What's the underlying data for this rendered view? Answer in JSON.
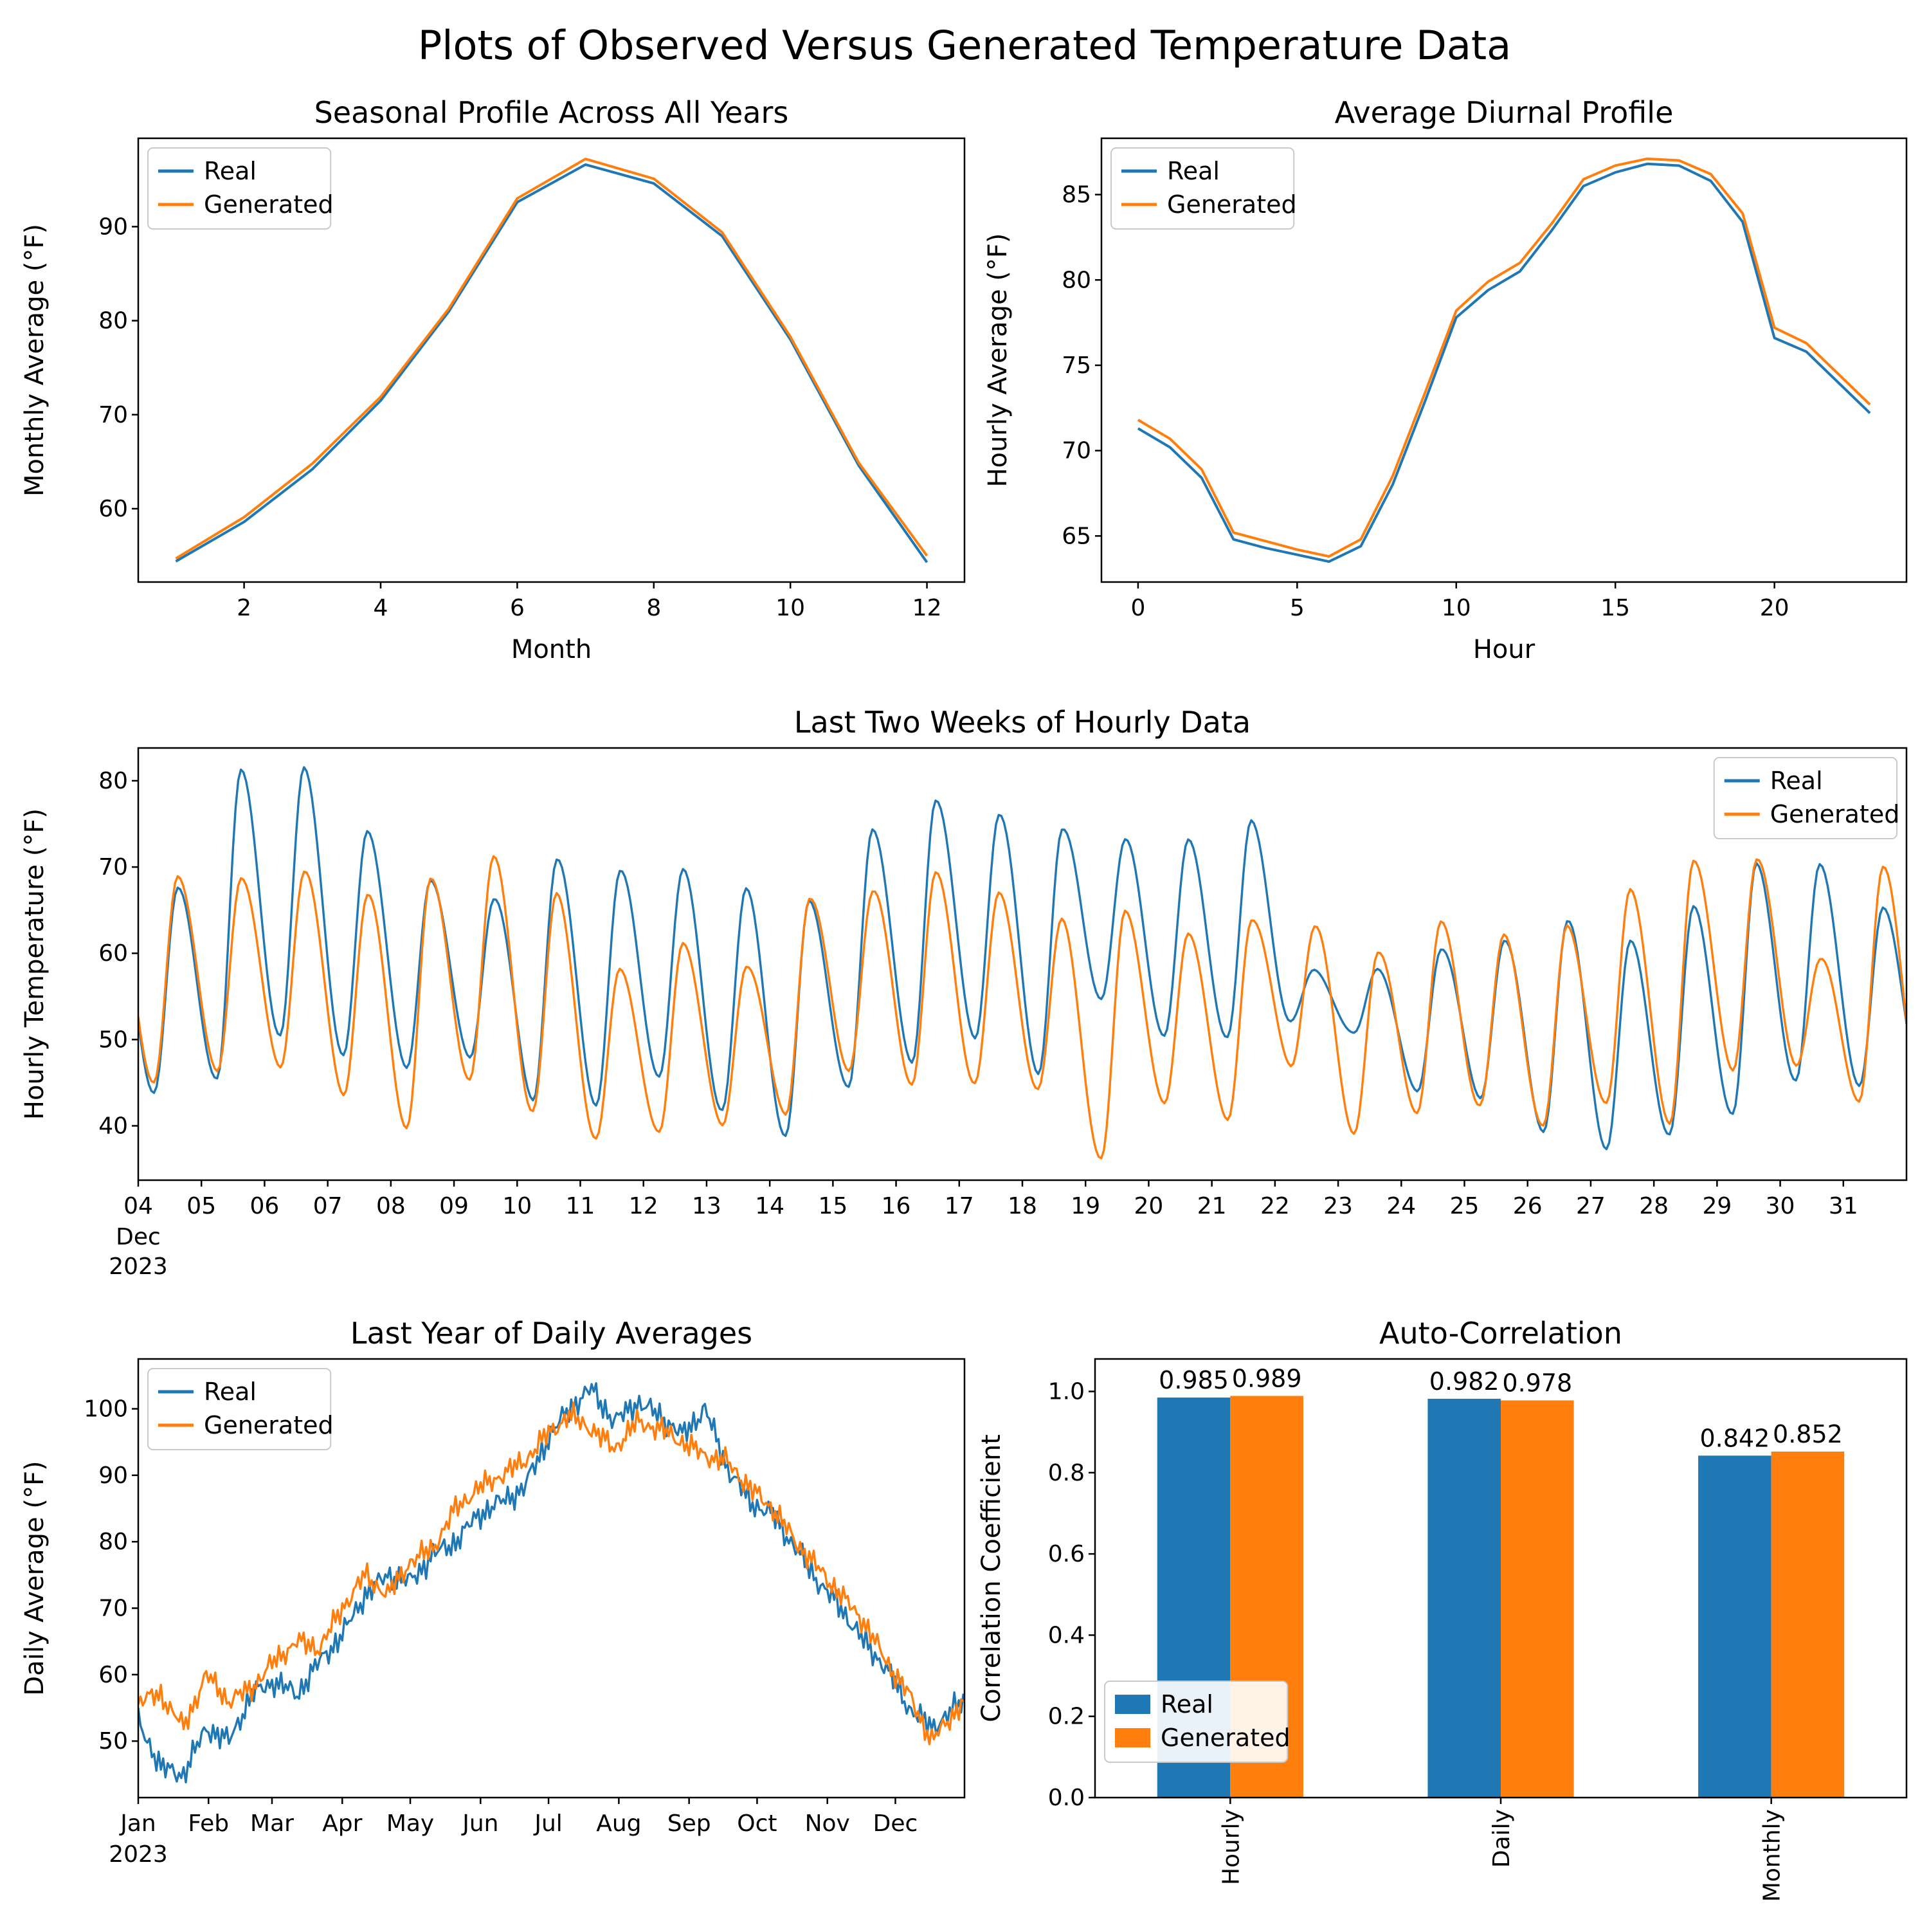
{
  "figure_title": "Plots of Observed Versus Generated Temperature Data",
  "colors": {
    "real": "#1f77b4",
    "generated": "#ff7f0e"
  },
  "legend_labels": {
    "real": "Real",
    "generated": "Generated"
  },
  "chart_data": [
    {
      "id": "seasonal",
      "type": "line",
      "title": "Seasonal Profile Across All Years",
      "xlabel": "Month",
      "ylabel": "Monthly Average (°F)",
      "xlim": [
        0.45,
        12.55
      ],
      "ylim": [
        52.2,
        99.4
      ],
      "xticks": [
        2,
        4,
        6,
        8,
        10,
        12
      ],
      "xtick_labels": [
        "2",
        "4",
        "6",
        "8",
        "10",
        "12"
      ],
      "yticks": [
        60,
        70,
        80,
        90
      ],
      "ytick_labels": [
        "60",
        "70",
        "80",
        "90"
      ],
      "x": [
        1,
        2,
        3,
        4,
        5,
        6,
        7,
        8,
        9,
        10,
        11,
        12
      ],
      "legend": "top-left",
      "series": [
        {
          "name": "Real",
          "color": "#1f77b4",
          "values": [
            54.4,
            58.6,
            64.2,
            71.5,
            81.0,
            92.6,
            96.6,
            94.6,
            89.0,
            78.0,
            64.6,
            54.3
          ]
        },
        {
          "name": "Generated",
          "color": "#ff7f0e",
          "values": [
            54.7,
            59.1,
            64.8,
            71.9,
            81.3,
            93.0,
            97.2,
            95.1,
            89.4,
            78.3,
            64.9,
            55.0
          ]
        }
      ]
    },
    {
      "id": "diurnal",
      "type": "line",
      "title": "Average Diurnal Profile",
      "xlabel": "Hour",
      "ylabel": "Hourly Average (°F)",
      "xlim": [
        -1.15,
        24.15
      ],
      "ylim": [
        62.3,
        88.3
      ],
      "xticks": [
        0,
        5,
        10,
        15,
        20
      ],
      "xtick_labels": [
        "0",
        "5",
        "10",
        "15",
        "20"
      ],
      "yticks": [
        65,
        70,
        75,
        80,
        85
      ],
      "ytick_labels": [
        "65",
        "70",
        "75",
        "80",
        "85"
      ],
      "x": [
        0,
        1,
        2,
        3,
        4,
        5,
        6,
        7,
        8,
        9,
        10,
        11,
        12,
        13,
        14,
        15,
        16,
        17,
        18,
        19,
        20,
        21,
        22,
        23
      ],
      "legend": "top-left",
      "series": [
        {
          "name": "Real",
          "color": "#1f77b4",
          "values": [
            71.3,
            70.2,
            68.4,
            64.8,
            64.3,
            63.9,
            63.5,
            64.4,
            68.0,
            72.8,
            77.8,
            79.4,
            80.5,
            82.9,
            85.5,
            86.3,
            86.8,
            86.7,
            85.8,
            83.4,
            76.6,
            75.8,
            74.0,
            72.2
          ]
        },
        {
          "name": "Generated",
          "color": "#ff7f0e",
          "values": [
            71.8,
            70.7,
            68.9,
            65.2,
            64.7,
            64.2,
            63.8,
            64.8,
            68.5,
            73.3,
            78.2,
            79.9,
            81.0,
            83.3,
            85.9,
            86.7,
            87.1,
            87.0,
            86.2,
            83.9,
            77.2,
            76.3,
            74.5,
            72.7
          ]
        }
      ]
    },
    {
      "id": "hourly",
      "type": "diurnal-days",
      "title": "Last Two Weeks of Hourly Data",
      "ylabel": "Hourly Temperature (°F)",
      "start_day": 4,
      "xlim": [
        4,
        32
      ],
      "ylim": [
        33.7,
        83.8
      ],
      "yticks": [
        40,
        50,
        60,
        70,
        80
      ],
      "ytick_labels": [
        "40",
        "50",
        "60",
        "70",
        "80"
      ],
      "day_labels": [
        "04",
        "05",
        "06",
        "07",
        "08",
        "09",
        "10",
        "11",
        "12",
        "13",
        "14",
        "15",
        "16",
        "17",
        "18",
        "19",
        "20",
        "21",
        "22",
        "23",
        "24",
        "25",
        "26",
        "27",
        "28",
        "29",
        "30",
        "31"
      ],
      "x_sub_labels": [
        "Dec",
        "2023"
      ],
      "legend": "top-right",
      "series": [
        {
          "name": "Real",
          "color": "#1f77b4",
          "daily_min": [
            44,
            46,
            50,
            48,
            46,
            48,
            43,
            43,
            46,
            42,
            38.5,
            44,
            47,
            50,
            46.5,
            55,
            51,
            50,
            52,
            50,
            44,
            43,
            40,
            37.5,
            39.5,
            41,
            45,
            44
          ],
          "daily_max": [
            67,
            81,
            81.5,
            74.5,
            69,
            66.5,
            71,
            69,
            69.5,
            67,
            66.5,
            74.5,
            78.5,
            76,
            74.5,
            72.5,
            73,
            75,
            58.5,
            58.5,
            61,
            61.5,
            63.5,
            61,
            65,
            70.5,
            70.5,
            66
          ]
        },
        {
          "name": "Generated",
          "color": "#ff7f0e",
          "daily_min": [
            44.5,
            46,
            46.5,
            44,
            40,
            46,
            41.5,
            38.5,
            38.5,
            40,
            41,
            47,
            45,
            45.5,
            44,
            36,
            42,
            40.5,
            47,
            39.5,
            42,
            42.5,
            40,
            42,
            40,
            46,
            47.5,
            43
          ],
          "daily_max": [
            69,
            69.5,
            69.5,
            67,
            68,
            71,
            66.5,
            58.5,
            61.5,
            59,
            66.5,
            67,
            69,
            66.5,
            64,
            65,
            63,
            64,
            63.5,
            59.5,
            63.5,
            61.5,
            63.5,
            67.5,
            71.5,
            71,
            59.5,
            69.5
          ]
        }
      ]
    },
    {
      "id": "daily",
      "type": "noisy-line",
      "title": "Last Year of Daily Averages",
      "ylabel": "Daily Average (°F)",
      "xlim": [
        0,
        364.5
      ],
      "ylim": [
        41.5,
        107.5
      ],
      "yticks": [
        50,
        60,
        70,
        80,
        90,
        100
      ],
      "ytick_labels": [
        "50",
        "60",
        "70",
        "80",
        "90",
        "100"
      ],
      "month_ticks": {
        "labels": [
          "Jan",
          "Feb",
          "Mar",
          "Apr",
          "May",
          "Jun",
          "Jul",
          "Aug",
          "Sep",
          "Oct",
          "Nov",
          "Dec"
        ],
        "days": [
          0,
          31,
          59,
          90,
          120,
          151,
          181,
          212,
          243,
          273,
          304,
          334
        ]
      },
      "x_sub_labels": [
        "2023"
      ],
      "waypoint_days": [
        0,
        10,
        20,
        30,
        40,
        50,
        60,
        70,
        80,
        90,
        100,
        110,
        120,
        130,
        140,
        150,
        160,
        170,
        180,
        190,
        200,
        210,
        220,
        230,
        240,
        250,
        260,
        270,
        280,
        290,
        300,
        310,
        320,
        330,
        340,
        350,
        364
      ],
      "legend": "top-left",
      "series": [
        {
          "name": "Real",
          "color": "#1f77b4",
          "jitter_amp": 2.5,
          "jitter_phase": 0.7,
          "waypoints": [
            53,
            46,
            45,
            52,
            50,
            57,
            59,
            57,
            62,
            66,
            72,
            75,
            74,
            78,
            80,
            84,
            86,
            88,
            95,
            100,
            103,
            98,
            101,
            99,
            96,
            100,
            91,
            86,
            84,
            79,
            74,
            70,
            65,
            61,
            55,
            52,
            56
          ]
        },
        {
          "name": "Generated",
          "color": "#ff7f0e",
          "jitter_amp": 2.3,
          "jitter_phase": 3.9,
          "waypoints": [
            56,
            57,
            52,
            60,
            56,
            58,
            62,
            65,
            64,
            70,
            75,
            72,
            77,
            79,
            85,
            88,
            90,
            92,
            96,
            99,
            97,
            94,
            98,
            97,
            95,
            93,
            92,
            88,
            85,
            80,
            76,
            72,
            68,
            62,
            57,
            50,
            56
          ]
        }
      ]
    },
    {
      "id": "autocorr",
      "type": "bar",
      "title": "Auto-Correlation",
      "ylabel": "Correlation Coefficient",
      "categories": [
        "Hourly",
        "Daily",
        "Monthly"
      ],
      "ylim": [
        0,
        1.08
      ],
      "yticks": [
        0,
        0.2,
        0.4,
        0.6,
        0.8,
        1.0
      ],
      "ytick_labels": [
        "0.0",
        "0.2",
        "0.4",
        "0.6",
        "0.8",
        "1.0"
      ],
      "legend": "bottom-left",
      "series": [
        {
          "name": "Real",
          "color": "#1f77b4",
          "values": [
            0.985,
            0.982,
            0.842
          ],
          "value_labels": [
            "0.985",
            "0.982",
            "0.842"
          ]
        },
        {
          "name": "Generated",
          "color": "#ff7f0e",
          "values": [
            0.989,
            0.978,
            0.852
          ],
          "value_labels": [
            "0.989",
            "0.978",
            "0.852"
          ]
        }
      ]
    }
  ]
}
